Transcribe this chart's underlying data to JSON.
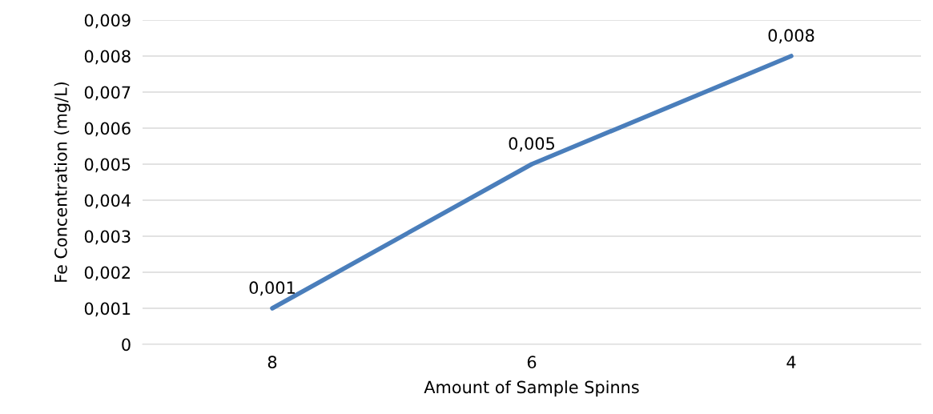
{
  "chart_data": {
    "type": "line",
    "xlabel": "Amount of Sample Spinns",
    "ylabel": "Fe Concentration (mg/L)",
    "categories": [
      "8",
      "6",
      "4"
    ],
    "series": [
      {
        "color": "#4a7ebb",
        "values": [
          0.001,
          0.005,
          0.008
        ],
        "value_labels": [
          "0,001",
          "0,005",
          "0,008"
        ]
      }
    ],
    "ylim": [
      0,
      0.009
    ],
    "yticks": [
      0,
      {
        "value": 0.001,
        "label": "0,001"
      },
      {
        "value": 0.002,
        "label": "0,002"
      },
      {
        "value": 0.003,
        "label": "0,003"
      },
      {
        "value": 0.004,
        "label": "0,004"
      },
      {
        "value": 0.005,
        "label": "0,005"
      },
      {
        "value": 0.006,
        "label": "0,006"
      },
      {
        "value": 0.007,
        "label": "0,007"
      },
      {
        "value": 0.008,
        "label": "0,008"
      },
      {
        "value": 0.009,
        "label": "0,009"
      }
    ],
    "grid": "y",
    "marker": "none",
    "line_style": "solid"
  }
}
